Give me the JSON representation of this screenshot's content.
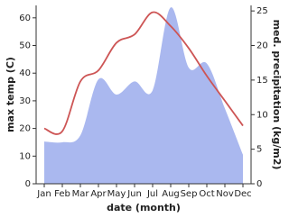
{
  "chart_data": {
    "type": "line-area",
    "xlabel": "date (month)",
    "ylabel": "max temp (C)",
    "y2label": "med. precipitation (kg/m2)",
    "categories": [
      "Jan",
      "Feb",
      "Mar",
      "Apr",
      "May",
      "Jun",
      "Jul",
      "Aug",
      "Sep",
      "Oct",
      "Nov",
      "Dec"
    ],
    "series": [
      {
        "name": "max temp",
        "kind": "line",
        "color": "#cd5555",
        "values": [
          20,
          19,
          37,
          41,
          51,
          54,
          62,
          57,
          49,
          39,
          30,
          21
        ]
      },
      {
        "name": "precipitation",
        "kind": "area",
        "axis": "y2",
        "color": "#aab8ef",
        "values": [
          6.1,
          6,
          7,
          15.1,
          12.9,
          14.8,
          13.5,
          25.5,
          16.8,
          17.4,
          10.9,
          4.2
        ]
      }
    ],
    "ylim": [
      0,
      64.5
    ],
    "yticks": [
      0,
      10,
      20,
      30,
      40,
      50,
      60
    ],
    "y2lim": [
      0,
      25.8
    ],
    "y2ticks": [
      0,
      5,
      10,
      15,
      20,
      25
    ]
  }
}
